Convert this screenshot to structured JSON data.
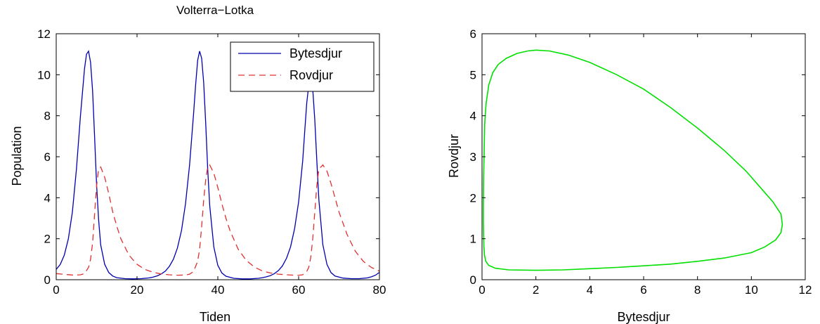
{
  "chart_data": [
    {
      "type": "line",
      "title": "Volterra−Lotka",
      "xlabel": "Tiden",
      "ylabel": "Population",
      "xlim": [
        0,
        80
      ],
      "ylim": [
        0,
        12
      ],
      "xticks": [
        0,
        20,
        40,
        60,
        80
      ],
      "yticks": [
        0,
        2,
        4,
        6,
        8,
        10,
        12
      ],
      "grid": false,
      "legend": "top-right",
      "series": [
        {
          "name": "Bytesdjur",
          "color": "#0000b0",
          "style": "solid",
          "x": [
            0,
            1,
            2,
            3,
            4,
            5,
            6,
            7,
            7.5,
            8,
            8.5,
            9,
            9.5,
            10,
            10.5,
            11,
            12,
            13,
            14,
            15,
            17,
            19,
            21,
            23,
            24,
            25,
            26,
            27,
            28,
            29,
            30,
            31,
            32,
            33,
            34,
            34.5,
            35,
            35.5,
            36,
            36.5,
            37,
            37.5,
            38,
            39,
            40,
            41,
            42,
            44,
            46,
            48,
            50,
            51,
            52,
            53,
            54,
            55,
            56,
            57,
            58,
            59,
            60,
            61,
            61.5,
            62,
            62.5,
            63,
            63.5,
            64,
            64.5,
            65,
            66,
            67,
            68,
            69,
            71,
            73,
            75,
            77,
            78,
            79,
            80
          ],
          "y": [
            0.5,
            0.75,
            1.2,
            2.0,
            3.3,
            5.4,
            8.0,
            10.3,
            11.0,
            11.15,
            10.6,
            9.2,
            7.0,
            4.6,
            2.9,
            1.7,
            0.75,
            0.35,
            0.18,
            0.1,
            0.05,
            0.04,
            0.05,
            0.09,
            0.13,
            0.19,
            0.28,
            0.42,
            0.65,
            1.0,
            1.55,
            2.4,
            3.7,
            5.6,
            8.1,
            9.5,
            10.7,
            11.15,
            10.8,
            9.6,
            7.6,
            5.4,
            3.6,
            1.6,
            0.7,
            0.33,
            0.17,
            0.07,
            0.04,
            0.04,
            0.07,
            0.1,
            0.14,
            0.2,
            0.3,
            0.45,
            0.68,
            1.05,
            1.6,
            2.5,
            3.8,
            5.8,
            7.2,
            8.6,
            9.5,
            9.8,
            9.3,
            7.8,
            5.8,
            3.9,
            1.7,
            0.75,
            0.35,
            0.18,
            0.08,
            0.05,
            0.05,
            0.09,
            0.14,
            0.22,
            0.36
          ]
        },
        {
          "name": "Rovdjur",
          "color": "#e03030",
          "style": "dashed",
          "x": [
            0,
            2,
            4,
            5,
            6,
            7,
            8,
            8.5,
            9,
            9.5,
            10,
            10.5,
            11,
            12,
            13,
            14,
            15,
            16,
            18,
            20,
            22,
            24,
            26,
            28,
            30,
            32,
            33,
            34,
            35,
            35.5,
            36,
            36.5,
            37,
            37.5,
            38,
            39,
            40,
            41,
            42,
            43,
            45,
            47,
            49,
            51,
            53,
            55,
            57,
            59,
            60,
            61,
            62,
            62.5,
            63,
            63.5,
            64,
            64.5,
            65,
            66,
            67,
            68,
            69,
            70,
            72,
            74,
            76,
            78,
            80
          ],
          "y": [
            0.3,
            0.26,
            0.23,
            0.23,
            0.24,
            0.3,
            0.6,
            1.0,
            1.8,
            3.2,
            4.6,
            5.4,
            5.5,
            5.0,
            4.2,
            3.3,
            2.6,
            2.0,
            1.2,
            0.75,
            0.5,
            0.36,
            0.28,
            0.24,
            0.22,
            0.23,
            0.27,
            0.4,
            0.9,
            1.5,
            2.6,
            3.9,
            4.9,
            5.5,
            5.6,
            5.2,
            4.5,
            3.7,
            3.0,
            2.4,
            1.5,
            0.95,
            0.62,
            0.43,
            0.33,
            0.27,
            0.24,
            0.22,
            0.22,
            0.24,
            0.4,
            0.6,
            1.1,
            2.0,
            3.3,
            4.6,
            5.4,
            5.6,
            5.3,
            4.7,
            4.0,
            3.3,
            2.2,
            1.4,
            0.9,
            0.6,
            0.42
          ]
        }
      ]
    },
    {
      "type": "line",
      "title": "",
      "xlabel": "Bytesdjur",
      "ylabel": "Rovdjur",
      "xlim": [
        0,
        12
      ],
      "ylim": [
        0,
        6
      ],
      "xticks": [
        0,
        2,
        4,
        6,
        8,
        10,
        12
      ],
      "yticks": [
        0,
        1,
        2,
        3,
        4,
        5,
        6
      ],
      "grid": false,
      "series": [
        {
          "color": "#00e000",
          "style": "solid",
          "x": [
            0.05,
            0.06,
            0.08,
            0.1,
            0.15,
            0.25,
            0.4,
            0.6,
            0.9,
            1.3,
            1.7,
            2.0,
            2.5,
            3.2,
            4.0,
            5.0,
            6.0,
            7.0,
            8.0,
            9.0,
            9.8,
            10.4,
            10.8,
            11.1,
            11.15,
            11.1,
            10.9,
            10.5,
            10.0,
            9.0,
            8.0,
            7.0,
            6.0,
            5.0,
            4.0,
            3.0,
            2.0,
            1.0,
            0.5,
            0.25,
            0.14,
            0.09,
            0.07,
            0.06,
            0.05,
            0.05
          ],
          "y": [
            1.8,
            2.5,
            3.2,
            3.8,
            4.3,
            4.75,
            5.05,
            5.25,
            5.4,
            5.52,
            5.58,
            5.6,
            5.58,
            5.48,
            5.3,
            5.0,
            4.65,
            4.2,
            3.7,
            3.15,
            2.65,
            2.2,
            1.9,
            1.6,
            1.35,
            1.15,
            0.97,
            0.8,
            0.66,
            0.53,
            0.45,
            0.38,
            0.34,
            0.3,
            0.27,
            0.24,
            0.23,
            0.24,
            0.28,
            0.35,
            0.45,
            0.6,
            0.8,
            1.05,
            1.4,
            1.8
          ]
        }
      ]
    }
  ]
}
